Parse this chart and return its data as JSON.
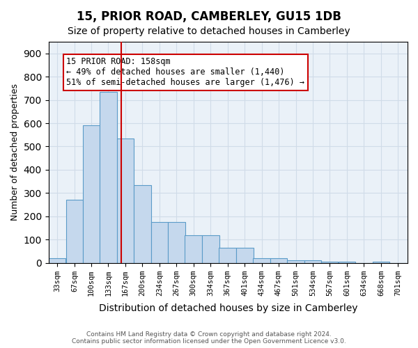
{
  "title": "15, PRIOR ROAD, CAMBERLEY, GU15 1DB",
  "subtitle": "Size of property relative to detached houses in Camberley",
  "xlabel": "Distribution of detached houses by size in Camberley",
  "ylabel": "Number of detached properties",
  "bar_labels": [
    "33sqm",
    "67sqm",
    "100sqm",
    "133sqm",
    "167sqm",
    "200sqm",
    "234sqm",
    "267sqm",
    "300sqm",
    "334sqm",
    "367sqm",
    "401sqm",
    "434sqm",
    "467sqm",
    "501sqm",
    "534sqm",
    "567sqm",
    "601sqm",
    "634sqm",
    "668sqm",
    "701sqm"
  ],
  "bar_values": [
    20,
    270,
    590,
    735,
    535,
    335,
    175,
    175,
    120,
    120,
    65,
    65,
    20,
    20,
    10,
    10,
    5,
    5,
    0,
    5,
    0
  ],
  "bar_color": "#c5d8ed",
  "bar_edge_color": "#5a9bc8",
  "grid_color": "#d0dce8",
  "background_color": "#eaf1f8",
  "vline_x": 158,
  "vline_color": "#cc0000",
  "annotation_line1": "15 PRIOR ROAD: 158sqm",
  "annotation_line2": "← 49% of detached houses are smaller (1,440)",
  "annotation_line3": "51% of semi-detached houses are larger (1,476) →",
  "annotation_box_color": "#ffffff",
  "annotation_box_edge_color": "#cc0000",
  "footer_text": "Contains HM Land Registry data © Crown copyright and database right 2024.\nContains public sector information licensed under the Open Government Licence v3.0.",
  "ylim": [
    0,
    950
  ],
  "yticks": [
    0,
    100,
    200,
    300,
    400,
    500,
    600,
    700,
    800,
    900
  ]
}
